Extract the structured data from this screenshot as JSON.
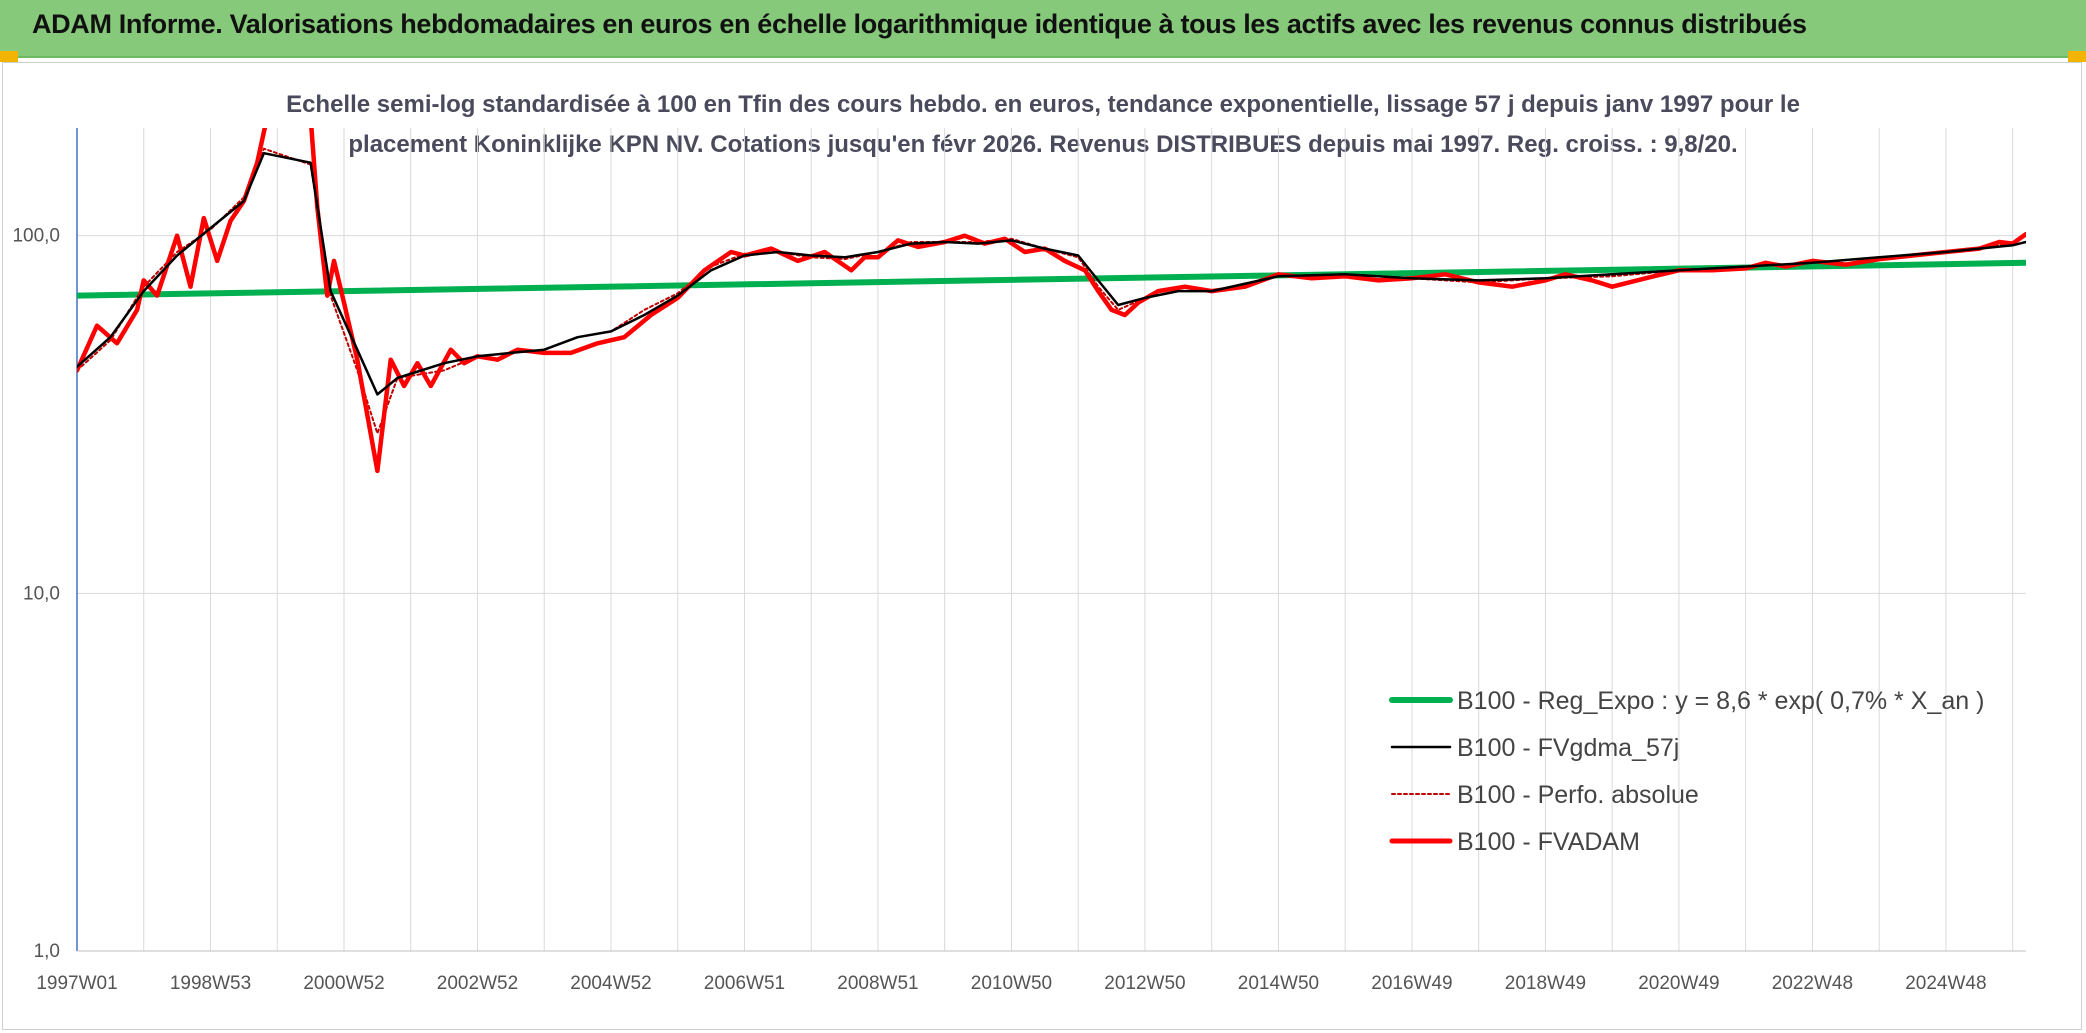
{
  "banner": {
    "title": "ADAM Informe. Valorisations hebdomadaires en euros en échelle logarithmique identique à tous les actifs avec les revenus connus distribués"
  },
  "colors": {
    "banner_bg": "#86c97a",
    "regression": "#00b050",
    "fvgdma": "#000000",
    "perfo": "#c00000",
    "fvadam": "#ff0000",
    "grid": "#d9d9d9"
  },
  "chart_data": {
    "type": "line",
    "title_lines": [
      "Echelle semi-log standardisée à 100 en Tfin des cours hebdo. en euros, tendance exponentielle, lissage 57 j depuis janv 1997 pour le",
      "placement Koninklijke KPN NV. Cotations jusqu'en févr 2026. Revenus DISTRIBUES depuis mai 1997. Reg. croiss. : 9,8/20."
    ],
    "y_scale": "log",
    "ylim": [
      1,
      200
    ],
    "y_ticks": [
      {
        "value": 1,
        "label": "1,0"
      },
      {
        "value": 10,
        "label": "10,0"
      },
      {
        "value": 100,
        "label": "100,0"
      }
    ],
    "xlim": [
      1997.0,
      2026.2
    ],
    "x_ticks": [
      {
        "value": 1997.0,
        "label": "1997W01"
      },
      {
        "value": 1999.0,
        "label": "1998W53"
      },
      {
        "value": 2001.0,
        "label": "2000W52"
      },
      {
        "value": 2003.0,
        "label": "2002W52"
      },
      {
        "value": 2005.0,
        "label": "2004W52"
      },
      {
        "value": 2007.0,
        "label": "2006W51"
      },
      {
        "value": 2009.0,
        "label": "2008W51"
      },
      {
        "value": 2011.0,
        "label": "2010W50"
      },
      {
        "value": 2013.0,
        "label": "2012W50"
      },
      {
        "value": 2015.0,
        "label": "2014W50"
      },
      {
        "value": 2017.0,
        "label": "2016W49"
      },
      {
        "value": 2019.0,
        "label": "2018W49"
      },
      {
        "value": 2021.0,
        "label": "2020W49"
      },
      {
        "value": 2023.0,
        "label": "2022W48"
      },
      {
        "value": 2025.0,
        "label": "2024W48"
      }
    ],
    "grid": true,
    "legend_position": "bottom-right",
    "series": [
      {
        "name": "B100 - Reg_Expo : y = 8,6 * exp( 0,7% *  X_an )",
        "style": "thick",
        "x": [
          1997.0,
          2026.2
        ],
        "y": [
          68,
          84
        ]
      },
      {
        "name": "B100 - FVgdma_57j",
        "style": "thin",
        "x": [
          1997.0,
          1997.5,
          1998.0,
          1998.5,
          1999.0,
          1999.5,
          1999.8,
          2000.5,
          2000.8,
          2001.2,
          2001.5,
          2001.8,
          2002.5,
          2003.0,
          2003.5,
          2004.0,
          2004.5,
          2005.0,
          2005.5,
          2006.0,
          2006.5,
          2007.0,
          2007.5,
          2008.0,
          2008.5,
          2009.0,
          2009.5,
          2010.0,
          2010.5,
          2011.0,
          2011.5,
          2012.0,
          2012.3,
          2012.6,
          2013.0,
          2013.5,
          2014.0,
          2015.0,
          2016.0,
          2017.0,
          2018.0,
          2019.0,
          2020.0,
          2021.0,
          2022.0,
          2023.0,
          2024.0,
          2025.0,
          2026.0,
          2026.2
        ],
        "y": [
          43,
          52,
          70,
          88,
          105,
          125,
          170,
          160,
          70,
          48,
          36,
          40,
          44,
          46,
          47,
          48,
          52,
          54,
          60,
          68,
          80,
          88,
          90,
          88,
          87,
          90,
          95,
          96,
          95,
          97,
          92,
          88,
          75,
          64,
          67,
          70,
          70,
          77,
          78,
          76,
          75,
          76,
          78,
          80,
          82,
          84,
          87,
          90,
          94,
          96
        ]
      },
      {
        "name": "B100 - Perfo. absolue",
        "style": "dotted",
        "x": [
          1997.0,
          1997.5,
          1998.0,
          1998.5,
          1999.0,
          1999.5,
          1999.8,
          2000.5,
          2000.8,
          2001.2,
          2001.5,
          2001.8,
          2002.5,
          2003.0,
          2003.5,
          2004.0,
          2004.5,
          2005.0,
          2005.5,
          2006.0,
          2006.5,
          2007.0,
          2007.5,
          2008.0,
          2008.5,
          2009.0,
          2009.5,
          2010.0,
          2010.5,
          2011.0,
          2011.5,
          2012.0,
          2012.3,
          2012.6,
          2013.0,
          2013.5,
          2014.0,
          2015.0,
          2016.0,
          2017.0,
          2018.0,
          2019.0,
          2020.0,
          2021.0,
          2022.0,
          2023.0,
          2024.0,
          2025.0,
          2026.0,
          2026.2
        ],
        "y": [
          42,
          51,
          72,
          90,
          104,
          128,
          175,
          158,
          68,
          42,
          28,
          40,
          42,
          46,
          47,
          48,
          52,
          54,
          62,
          69,
          82,
          89,
          90,
          87,
          86,
          90,
          96,
          96,
          96,
          98,
          92,
          87,
          72,
          62,
          67,
          70,
          70,
          77,
          78,
          76,
          74,
          76,
          77,
          80,
          82,
          84,
          87,
          90,
          95,
          100
        ]
      },
      {
        "name": "B100 - FVADAM",
        "style": "thick",
        "x": [
          1997.0,
          1997.3,
          1997.6,
          1997.9,
          1998.0,
          1998.2,
          1998.5,
          1998.7,
          1998.9,
          1999.1,
          1999.3,
          1999.5,
          1999.7,
          1999.85,
          2000.5,
          2000.6,
          2000.75,
          2000.85,
          2001.0,
          2001.2,
          2001.5,
          2001.7,
          2001.9,
          2002.1,
          2002.3,
          2002.6,
          2002.8,
          2003.0,
          2003.3,
          2003.6,
          2004.0,
          2004.4,
          2004.8,
          2005.2,
          2005.6,
          2006.0,
          2006.4,
          2006.8,
          2007.0,
          2007.4,
          2007.8,
          2008.2,
          2008.6,
          2008.8,
          2009.0,
          2009.3,
          2009.6,
          2010.0,
          2010.3,
          2010.6,
          2010.9,
          2011.2,
          2011.5,
          2011.8,
          2012.1,
          2012.3,
          2012.5,
          2012.7,
          2012.9,
          2013.2,
          2013.6,
          2014.0,
          2014.5,
          2015.0,
          2015.5,
          2016.0,
          2016.5,
          2017.0,
          2017.5,
          2018.0,
          2018.5,
          2019.0,
          2019.3,
          2019.7,
          2020.0,
          2020.5,
          2021.0,
          2021.5,
          2022.0,
          2022.3,
          2022.6,
          2023.0,
          2023.5,
          2024.0,
          2024.5,
          2025.0,
          2025.5,
          2025.8,
          2026.0,
          2026.2
        ],
        "y": [
          42,
          56,
          50,
          62,
          75,
          68,
          100,
          72,
          112,
          85,
          110,
          125,
          160,
          215,
          215,
          120,
          68,
          85,
          65,
          45,
          22,
          45,
          38,
          44,
          38,
          48,
          44,
          46,
          45,
          48,
          47,
          47,
          50,
          52,
          60,
          67,
          80,
          90,
          88,
          92,
          85,
          90,
          80,
          87,
          87,
          97,
          93,
          96,
          100,
          95,
          98,
          90,
          92,
          85,
          80,
          70,
          62,
          60,
          65,
          70,
          72,
          70,
          72,
          78,
          76,
          77,
          75,
          76,
          78,
          74,
          72,
          75,
          78,
          75,
          72,
          76,
          80,
          80,
          81,
          84,
          82,
          85,
          83,
          86,
          88,
          90,
          92,
          96,
          95,
          101
        ]
      }
    ]
  }
}
